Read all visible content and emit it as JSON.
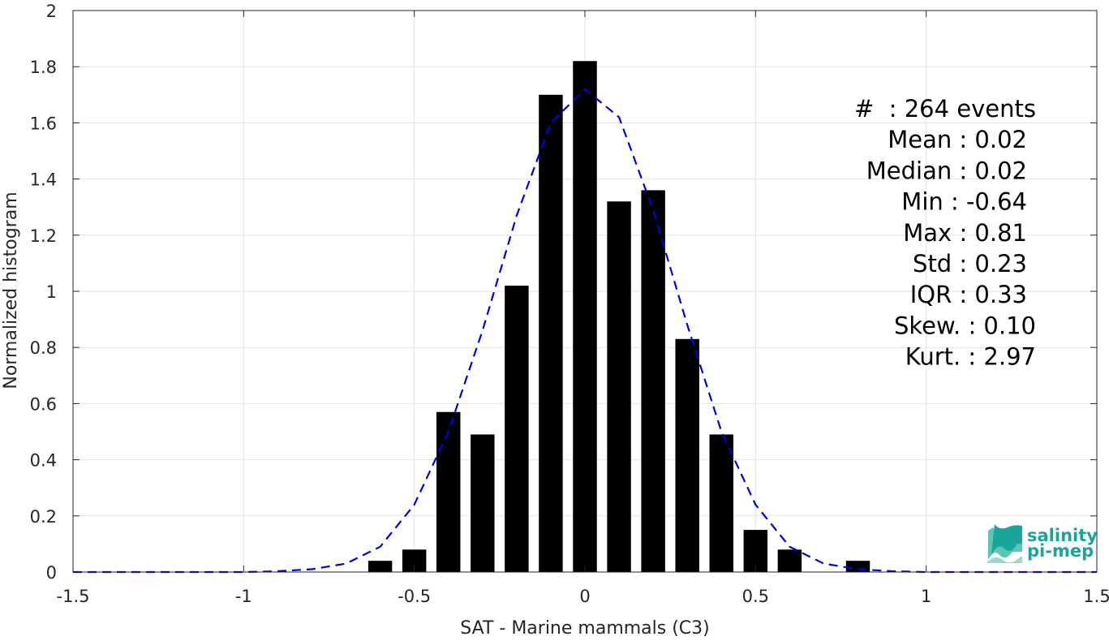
{
  "chart_data": {
    "type": "bar",
    "xlabel": "SAT - Marine mammals (C3)",
    "ylabel": "Normalized histogram",
    "xlim": [
      -1.5,
      1.5
    ],
    "ylim": [
      0,
      2
    ],
    "xticks": [
      -1.5,
      -1,
      -0.5,
      0,
      0.5,
      1,
      1.5
    ],
    "xtick_labels": [
      "-1.5",
      "-1",
      "-0.5",
      "0",
      "0.5",
      "1",
      "1.5"
    ],
    "yticks": [
      0,
      0.2,
      0.4,
      0.6,
      0.8,
      1,
      1.2,
      1.4,
      1.6,
      1.8,
      2
    ],
    "ytick_labels": [
      "0",
      "0.2",
      "0.4",
      "0.6",
      "0.8",
      "1",
      "1.2",
      "1.4",
      "1.6",
      "1.8",
      "2"
    ],
    "grid": true,
    "bar_color": "#000000",
    "bar_width": 0.07,
    "bars": {
      "x": [
        -0.6,
        -0.5,
        -0.4,
        -0.3,
        -0.2,
        -0.1,
        0.0,
        0.1,
        0.2,
        0.3,
        0.4,
        0.5,
        0.6,
        0.8
      ],
      "values": [
        0.04,
        0.08,
        0.57,
        0.49,
        1.02,
        1.7,
        1.82,
        1.32,
        1.36,
        0.83,
        0.49,
        0.15,
        0.08,
        0.04
      ]
    },
    "fit_curve": {
      "style": "dashed",
      "color": "#0000e6",
      "x": [
        -1.5,
        -1.4,
        -1.3,
        -1.2,
        -1.1,
        -1.0,
        -0.9,
        -0.8,
        -0.7,
        -0.6,
        -0.5,
        -0.4,
        -0.3,
        -0.2,
        -0.1,
        0.0,
        0.1,
        0.2,
        0.3,
        0.4,
        0.5,
        0.6,
        0.7,
        0.8,
        0.9,
        1.0,
        1.1,
        1.2,
        1.3,
        1.4,
        1.5
      ],
      "y": [
        0,
        0,
        0,
        0,
        0,
        0,
        0.003,
        0.01,
        0.03,
        0.09,
        0.24,
        0.5,
        0.86,
        1.27,
        1.6,
        1.72,
        1.62,
        1.29,
        0.88,
        0.5,
        0.24,
        0.09,
        0.03,
        0.01,
        0.003,
        0,
        0,
        0,
        0,
        0,
        0
      ]
    },
    "stats": [
      "#  : 264 events",
      "Mean : 0.02",
      "Median : 0.02",
      "Min : -0.64",
      "Max : 0.81",
      "Std : 0.23",
      "IQR : 0.33",
      "Skew. : 0.10",
      "Kurt. : 2.97"
    ]
  },
  "logo": {
    "line1": "salinity",
    "line2": "pi-mep",
    "color": "#1aa59a"
  }
}
